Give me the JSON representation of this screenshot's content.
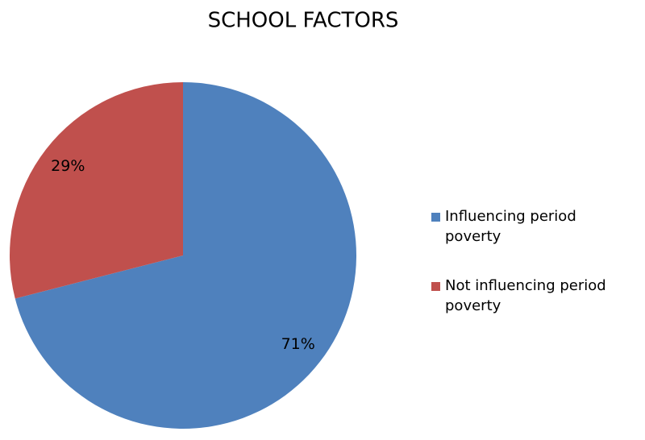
{
  "chart_data": {
    "type": "pie",
    "title": "SCHOOL FACTORS",
    "categories": [
      "Influencing period poverty",
      "Not influencing period poverty"
    ],
    "values": [
      71,
      29
    ],
    "value_labels": [
      "71%",
      "29%"
    ],
    "colors": [
      "#4f81bd",
      "#c0504d"
    ]
  }
}
